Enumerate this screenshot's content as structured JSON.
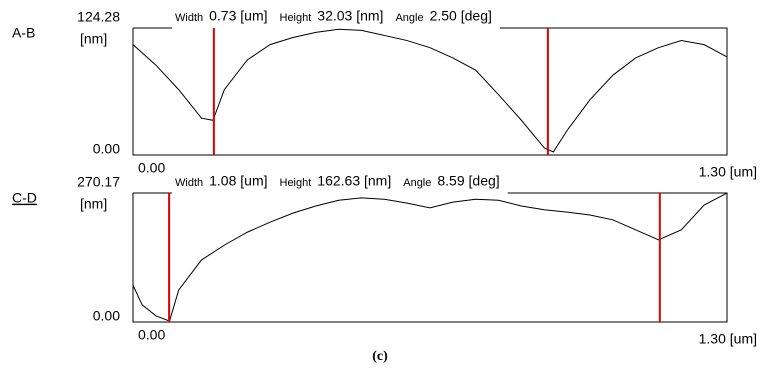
{
  "chart_data": [
    {
      "type": "line",
      "label": "A-B",
      "y_label": "[nm]",
      "measurements": [
        {
          "label": "Width",
          "value": "0.73 [um]"
        },
        {
          "label": "Height",
          "value": "32.03 [nm]"
        },
        {
          "label": "Angle",
          "value": "2.50 [deg]"
        }
      ],
      "x": [
        0,
        0.05,
        0.1,
        0.15,
        0.175,
        0.2,
        0.25,
        0.3,
        0.35,
        0.4,
        0.45,
        0.5,
        0.55,
        0.6,
        0.65,
        0.7,
        0.75,
        0.8,
        0.85,
        0.9,
        0.92,
        0.95,
        1.0,
        1.05,
        1.1,
        1.15,
        1.2,
        1.25,
        1.3
      ],
      "values": [
        108,
        88,
        64,
        36,
        34,
        64,
        93,
        108,
        115,
        120,
        123,
        122,
        117,
        112,
        105,
        95,
        83,
        59,
        34,
        7,
        3,
        24,
        54,
        78,
        95,
        105,
        112,
        108,
        96
      ],
      "color": "#000000",
      "cursors": {
        "color": "#e00000",
        "x": [
          0.177,
          0.908
        ]
      },
      "xlim": [
        0,
        1.3
      ],
      "ylim": [
        0,
        124.28
      ],
      "xticks": [
        {
          "value": 0,
          "label": "0.00"
        },
        {
          "value": 1.3,
          "label": "1.30 [um]"
        }
      ],
      "yticks": [
        {
          "value": 0,
          "label": "0.00"
        },
        124.28
      ]
    },
    {
      "type": "line",
      "label": "C-D",
      "y_label": "[nm]",
      "measurements": [
        {
          "label": "Width",
          "value": "1.08 [um]"
        },
        {
          "label": "Height",
          "value": "162.63 [nm]"
        },
        {
          "label": "Angle",
          "value": "8.59 [deg]"
        }
      ],
      "x": [
        0,
        0.02,
        0.05,
        0.08,
        0.1,
        0.15,
        0.2,
        0.25,
        0.3,
        0.35,
        0.4,
        0.45,
        0.5,
        0.55,
        0.6,
        0.65,
        0.7,
        0.75,
        0.8,
        0.85,
        0.9,
        0.95,
        1.0,
        1.05,
        1.1,
        1.15,
        1.2,
        1.25,
        1.3
      ],
      "values": [
        77,
        36,
        13,
        2,
        67,
        130,
        161,
        188,
        209,
        228,
        243,
        255,
        260,
        257,
        249,
        239,
        251,
        257,
        255,
        243,
        235,
        230,
        224,
        214,
        193,
        172,
        193,
        245,
        270
      ],
      "color": "#000000",
      "cursors": {
        "color": "#e00000",
        "x": [
          0.079,
          1.153
        ]
      },
      "xlim": [
        0,
        1.3
      ],
      "ylim": [
        0,
        270.17
      ],
      "xticks": [
        {
          "value": 0,
          "label": "0.00"
        },
        {
          "value": 1.3,
          "label": "1.30 [um]"
        }
      ],
      "yticks": [
        {
          "value": 0,
          "label": "0.00"
        },
        270.17
      ]
    }
  ],
  "caption": "(c)"
}
